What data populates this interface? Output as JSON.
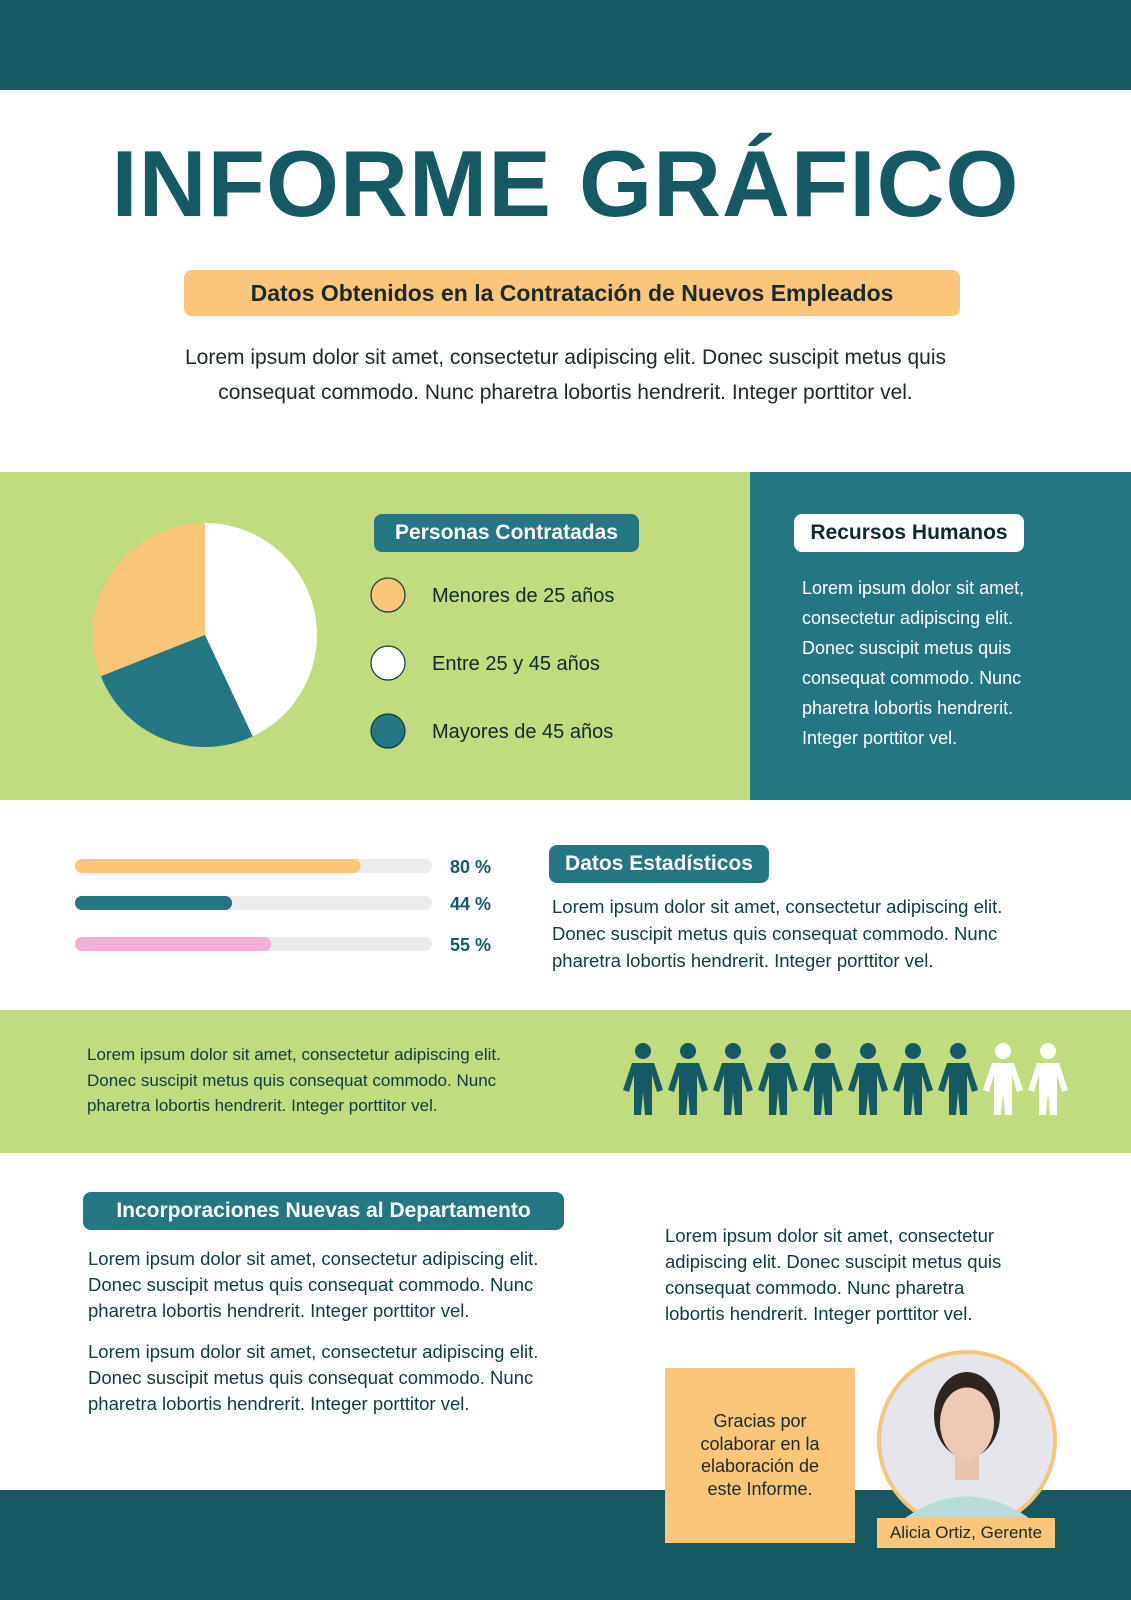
{
  "header": {
    "title": "INFORME GRÁFICO",
    "subtitle": "Datos Obtenidos en la Contratación de Nuevos Empleados",
    "intro": [
      "Lorem ipsum dolor sit amet, consectetur adipiscing elit. Donec suscipit metus quis",
      "consequat commodo. Nunc pharetra lobortis hendrerit. Integer porttitor vel."
    ]
  },
  "pie": {
    "type": "pie",
    "title": "Personas Contratadas",
    "categories": [
      "Menores de 25 años",
      "Entre 25 y 45 años",
      "Mayores de 45 años"
    ],
    "values": [
      31,
      43,
      26
    ],
    "colors": [
      "#fbc57a",
      "#ffffff",
      "#247682"
    ]
  },
  "hr": {
    "title": "Recursos Humanos",
    "lines": [
      "Lorem ipsum dolor sit amet,",
      "consectetur adipiscing elit.",
      "Donec suscipit metus quis",
      "consequat commodo. Nunc",
      "pharetra lobortis hendrerit.",
      "Integer porttitor vel."
    ]
  },
  "bars": {
    "type": "progress",
    "xlim": [
      0,
      100
    ],
    "values": [
      80,
      44,
      55
    ],
    "value_labels": [
      "80 %",
      "44 %",
      "55 %"
    ],
    "colors": [
      "#fbc57a",
      "#247682",
      "#f4aed8"
    ]
  },
  "stats": {
    "title": "Datos Estadísticos",
    "lines": [
      "Lorem ipsum dolor sit amet, consectetur adipiscing elit.",
      "Donec suscipit metus quis consequat commodo. Nunc",
      "pharetra lobortis hendrerit. Integer porttitor vel."
    ]
  },
  "band": {
    "lines": [
      "Lorem ipsum dolor sit amet, consectetur adipiscing elit.",
      "Donec suscipit metus quis consequat commodo. Nunc",
      "pharetra lobortis hendrerit. Integer porttitor vel."
    ],
    "pictogram": {
      "filled": 8,
      "total": 10
    }
  },
  "incorporaciones": {
    "title": "Incorporaciones Nuevas al Departamento",
    "paragraph1": [
      "Lorem ipsum dolor sit amet, consectetur adipiscing elit.",
      "Donec suscipit metus quis consequat commodo. Nunc",
      "pharetra lobortis hendrerit. Integer porttitor vel."
    ],
    "paragraph2": [
      "Lorem ipsum dolor sit amet, consectetur adipiscing elit.",
      "Donec suscipit metus quis consequat commodo. Nunc",
      "pharetra lobortis hendrerit. Integer porttitor vel."
    ],
    "side": [
      "Lorem ipsum dolor sit amet, consectetur",
      "adipiscing elit. Donec suscipit metus quis",
      "consequat commodo. Nunc pharetra",
      "lobortis hendrerit. Integer porttitor vel."
    ]
  },
  "footer": {
    "thanks": [
      "Gracias por",
      "colaborar en la",
      "elaboración de",
      "este Informe."
    ],
    "name": "Alicia Ortiz, Gerente"
  }
}
